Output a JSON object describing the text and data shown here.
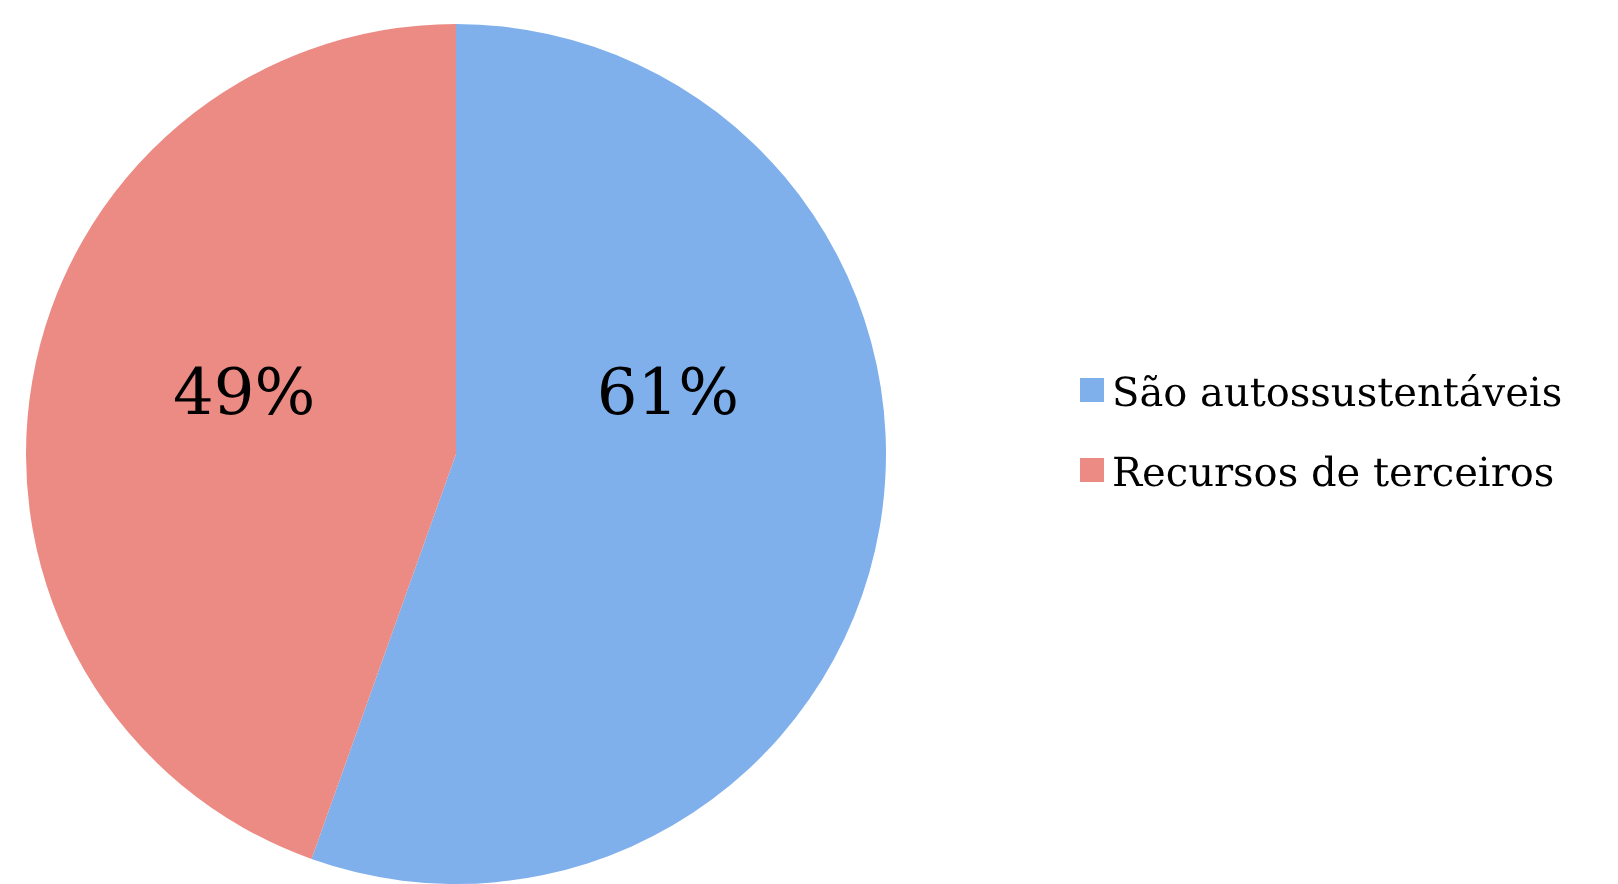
{
  "chart_data": {
    "type": "pie",
    "categories": [
      "São autossustentáveis",
      "Recursos de terceiros"
    ],
    "values": [
      61,
      49
    ],
    "colors": [
      "#7fb0ec",
      "#ec8a84"
    ],
    "value_labels": [
      "61%",
      "49%"
    ],
    "legend": "right"
  }
}
